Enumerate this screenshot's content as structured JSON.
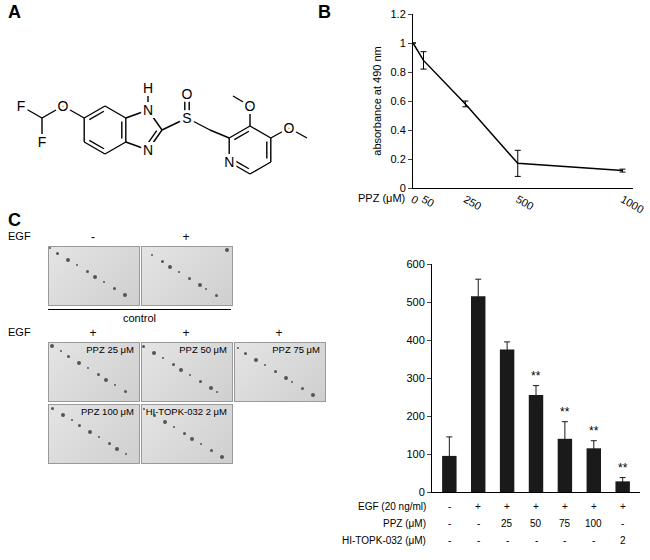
{
  "panel_labels": [
    "A",
    "B",
    "C"
  ],
  "structure": {
    "atoms": [
      "F",
      "F",
      "O",
      "H",
      "N",
      "N",
      "S",
      "O",
      "O",
      "O",
      "N"
    ]
  },
  "colony_images": {
    "rows": [
      {
        "row_label": "EGF",
        "images": [
          {
            "sign": "-"
          },
          {
            "sign": "+"
          }
        ],
        "caption": "control"
      },
      {
        "row_label": "EGF",
        "images": [
          {
            "sign": "+",
            "label": "PPZ 25 μM"
          },
          {
            "sign": "+",
            "label": "PPZ 50 μM"
          },
          {
            "sign": "+",
            "label": "PPZ 75 μM"
          }
        ]
      },
      {
        "images": [
          {
            "label": "PPZ 100 μM"
          },
          {
            "label": "HI-TOPK-032 2 μM"
          }
        ]
      }
    ]
  },
  "chart_data": [
    {
      "type": "line",
      "x": [
        0,
        50,
        250,
        500,
        1000
      ],
      "values": [
        1.0,
        0.88,
        0.58,
        0.17,
        0.12
      ],
      "errors": [
        0,
        0.06,
        0.02,
        0.09,
        0.01
      ],
      "color": "#000000",
      "x_label": "PPZ (μM)",
      "y_label": "absorbance at 490 nm",
      "xlim": [
        0,
        1050
      ],
      "xticks": [
        0,
        50,
        250,
        500,
        1000
      ],
      "ylim": [
        0,
        1.2
      ],
      "yticks": [
        0,
        0.2,
        0.4,
        0.6,
        0.8,
        1,
        1.2
      ],
      "grid": false
    },
    {
      "type": "bar",
      "categories": [
        null,
        null,
        null,
        null,
        null,
        null,
        null
      ],
      "values": [
        95,
        515,
        375,
        255,
        140,
        115,
        28
      ],
      "errors": [
        50,
        45,
        20,
        25,
        45,
        20,
        10
      ],
      "significance": [
        null,
        null,
        null,
        "**",
        "**",
        "**",
        "**"
      ],
      "color": "#1a1a1a",
      "ylim": [
        0,
        600
      ],
      "yticks": [
        0,
        100,
        200,
        300,
        400,
        500,
        600
      ],
      "grid": false,
      "tick_labels": "y",
      "condition_table": {
        "rows": [
          {
            "label": "EGF (20 ng/ml)",
            "cells": [
              "-",
              "+",
              "+",
              "+",
              "+",
              "+",
              "+"
            ]
          },
          {
            "label": "PPZ (μM)",
            "cells": [
              "-",
              "-",
              "25",
              "50",
              "75",
              "100",
              "-"
            ]
          },
          {
            "label": "HI-TOPK-032 (μM)",
            "cells": [
              "-",
              "-",
              "-",
              "-",
              "-",
              "-",
              "2"
            ]
          }
        ]
      }
    }
  ]
}
